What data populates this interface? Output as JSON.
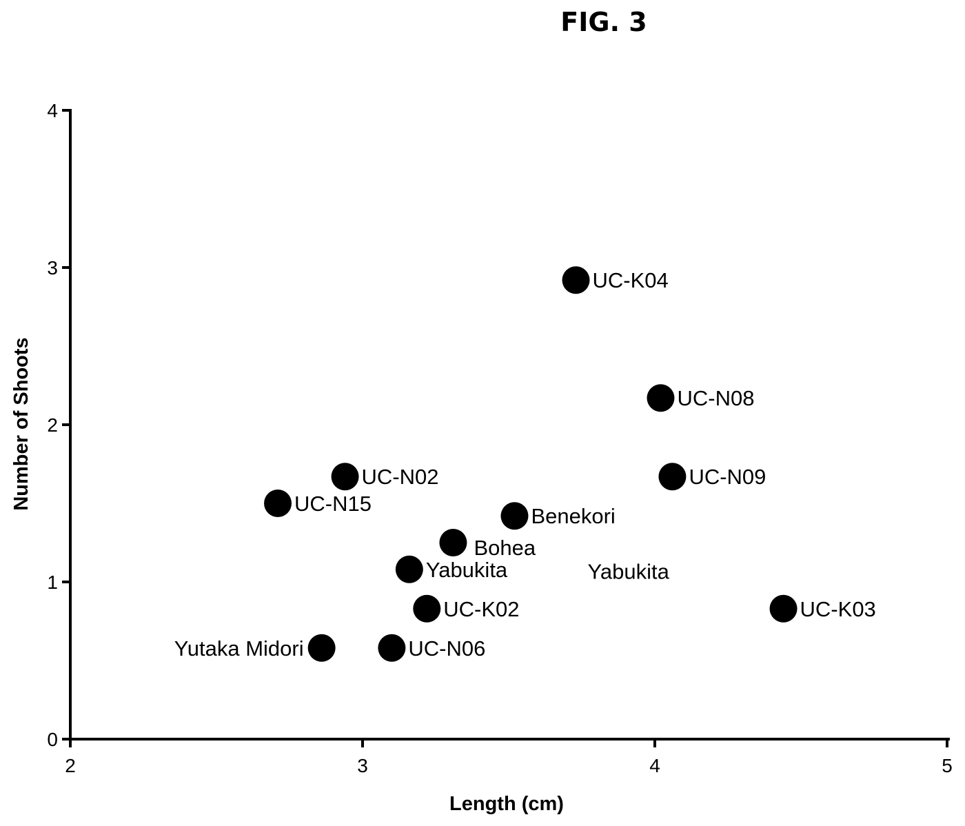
{
  "figure": {
    "title": "FIG. 3"
  },
  "chart_data": {
    "type": "scatter",
    "title": "FIG. 3",
    "xlabel": "Length (cm)",
    "ylabel": "Number of Shoots",
    "xlim": [
      2,
      5
    ],
    "ylim": [
      0,
      4
    ],
    "x_ticks": [
      "2",
      "3",
      "4",
      "5"
    ],
    "y_ticks": [
      "0",
      "1",
      "2",
      "3",
      "4"
    ],
    "grid": false,
    "points": [
      {
        "label": "UC-K04",
        "x": 3.73,
        "y": 2.92,
        "label_side": "right"
      },
      {
        "label": "UC-N08",
        "x": 4.02,
        "y": 2.17,
        "label_side": "right"
      },
      {
        "label": "UC-N02",
        "x": 2.94,
        "y": 1.67,
        "label_side": "right"
      },
      {
        "label": "UC-N09",
        "x": 4.06,
        "y": 1.67,
        "label_side": "right"
      },
      {
        "label": "UC-N15",
        "x": 2.71,
        "y": 1.5,
        "label_side": "right"
      },
      {
        "label": "Benekori",
        "x": 3.52,
        "y": 1.42,
        "label_side": "right"
      },
      {
        "label": "Bohea",
        "x": 3.31,
        "y": 1.25,
        "label_side": "below-right"
      },
      {
        "label": "Yabukita",
        "x": 3.16,
        "y": 1.08,
        "label_side": "right"
      },
      {
        "label": "UC-K02",
        "x": 3.22,
        "y": 0.83,
        "label_side": "right"
      },
      {
        "label": "UC-K03",
        "x": 4.44,
        "y": 0.83,
        "label_side": "right"
      },
      {
        "label": "Yutaka Midori",
        "x": 2.86,
        "y": 0.58,
        "label_side": "left"
      },
      {
        "label": "UC-N06",
        "x": 3.1,
        "y": 0.58,
        "label_side": "right"
      }
    ],
    "annotations": [
      {
        "text": "Yabukita",
        "x": 3.77,
        "y": 1.02
      }
    ]
  }
}
